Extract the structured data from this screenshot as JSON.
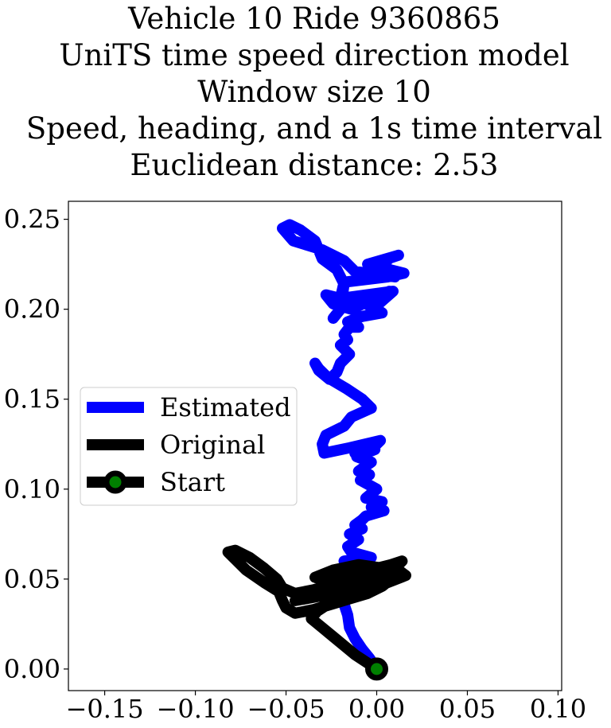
{
  "chart_data": {
    "type": "line",
    "title_lines": [
      "Vehicle 10 Ride 9360865",
      "UniTS time speed direction model",
      "Window size 10",
      "Speed, heading, and a 1s time interval",
      "Euclidean distance: 2.53"
    ],
    "xlabel": "",
    "ylabel": "",
    "xlim": [
      -0.17,
      0.102
    ],
    "ylim": [
      -0.012,
      0.26
    ],
    "x_ticks": [
      -0.15,
      -0.1,
      -0.05,
      0.0,
      0.05,
      0.1
    ],
    "x_tick_labels": [
      "−0.15",
      "−0.10",
      "−0.05",
      "0.00",
      "0.05",
      "0.10"
    ],
    "y_ticks": [
      0.0,
      0.05,
      0.1,
      0.15,
      0.2,
      0.25
    ],
    "y_tick_labels": [
      "0.00",
      "0.05",
      "0.10",
      "0.15",
      "0.20",
      "0.25"
    ],
    "grid": false,
    "legend_position": "center-left",
    "series": [
      {
        "name": "Estimated",
        "color": "#0000ff",
        "x": [
          0.0,
          -0.004,
          -0.008,
          -0.012,
          -0.015,
          -0.016,
          -0.018,
          -0.017,
          -0.02,
          -0.016,
          -0.022,
          -0.01,
          -0.018,
          -0.003,
          -0.014,
          -0.016,
          -0.01,
          -0.015,
          -0.008,
          -0.012,
          -0.008,
          -0.006,
          0.004,
          -0.003,
          0.003,
          -0.006,
          0.0,
          -0.009,
          -0.004,
          -0.01,
          -0.003,
          -0.011,
          -0.001,
          -0.006,
          -0.012,
          0.0,
          0.002,
          -0.015,
          -0.029,
          -0.03,
          -0.028,
          -0.018,
          -0.014,
          -0.003,
          -0.008,
          -0.017,
          -0.027,
          -0.032,
          -0.034,
          -0.032,
          -0.026,
          -0.022,
          -0.02,
          -0.015,
          -0.02,
          -0.016,
          -0.018,
          -0.015,
          -0.01,
          -0.016,
          -0.008,
          0.003,
          0.0,
          -0.006,
          0.007,
          -0.014,
          -0.024,
          -0.028,
          -0.016,
          0.0,
          0.009,
          -0.02,
          -0.018,
          0.006,
          0.015,
          -0.005,
          0.012,
          0.006,
          0.004,
          0.01,
          -0.012,
          -0.018,
          -0.03,
          -0.046,
          -0.052,
          -0.048,
          -0.042,
          -0.034,
          -0.03,
          -0.022,
          -0.018,
          -0.02,
          -0.024
        ],
        "y": [
          0.0,
          0.006,
          0.011,
          0.017,
          0.023,
          0.03,
          0.036,
          0.04,
          0.045,
          0.05,
          0.055,
          0.058,
          0.06,
          0.062,
          0.065,
          0.068,
          0.072,
          0.075,
          0.078,
          0.08,
          0.083,
          0.085,
          0.088,
          0.09,
          0.093,
          0.095,
          0.1,
          0.105,
          0.108,
          0.11,
          0.115,
          0.118,
          0.122,
          0.125,
          0.12,
          0.125,
          0.127,
          0.123,
          0.12,
          0.125,
          0.13,
          0.135,
          0.14,
          0.145,
          0.15,
          0.156,
          0.162,
          0.167,
          0.17,
          0.166,
          0.161,
          0.165,
          0.17,
          0.175,
          0.18,
          0.183,
          0.186,
          0.19,
          0.19,
          0.193,
          0.196,
          0.198,
          0.2,
          0.203,
          0.21,
          0.2,
          0.203,
          0.208,
          0.205,
          0.202,
          0.21,
          0.206,
          0.215,
          0.218,
          0.22,
          0.225,
          0.23,
          0.228,
          0.222,
          0.218,
          0.221,
          0.227,
          0.233,
          0.238,
          0.245,
          0.247,
          0.244,
          0.238,
          0.228,
          0.222,
          0.214,
          0.2,
          0.195
        ]
      },
      {
        "name": "Original",
        "color": "#000000",
        "x": [
          0.0,
          -0.006,
          -0.012,
          -0.018,
          -0.024,
          -0.03,
          -0.036,
          -0.033,
          -0.027,
          -0.02,
          -0.01,
          0.0,
          0.008,
          0.003,
          -0.005,
          -0.015,
          -0.025,
          -0.035,
          -0.045,
          -0.05,
          -0.052,
          -0.054,
          -0.062,
          -0.072,
          -0.082,
          -0.078,
          -0.07,
          -0.062,
          -0.055,
          -0.052,
          -0.045,
          -0.035,
          -0.025,
          -0.015,
          -0.005,
          0.005,
          0.012,
          0.016,
          0.006,
          -0.01,
          -0.025,
          -0.038,
          -0.045,
          -0.034,
          -0.02,
          -0.006,
          0.006,
          0.014,
          0.004,
          -0.01,
          -0.024,
          -0.034,
          -0.026,
          -0.016,
          -0.004,
          0.008,
          0.014,
          0.01,
          0.002,
          -0.008,
          -0.018,
          -0.026,
          -0.03,
          -0.022,
          -0.012,
          -0.002,
          0.004
        ],
        "y": [
          0.0,
          0.004,
          0.008,
          0.013,
          0.018,
          0.023,
          0.028,
          0.032,
          0.036,
          0.04,
          0.044,
          0.047,
          0.05,
          0.046,
          0.042,
          0.039,
          0.036,
          0.033,
          0.031,
          0.034,
          0.038,
          0.043,
          0.048,
          0.055,
          0.065,
          0.066,
          0.062,
          0.056,
          0.05,
          0.045,
          0.042,
          0.044,
          0.047,
          0.05,
          0.052,
          0.054,
          0.055,
          0.052,
          0.048,
          0.046,
          0.044,
          0.041,
          0.038,
          0.04,
          0.043,
          0.046,
          0.049,
          0.052,
          0.056,
          0.058,
          0.055,
          0.051,
          0.048,
          0.052,
          0.055,
          0.058,
          0.06,
          0.056,
          0.053,
          0.05,
          0.047,
          0.044,
          0.04,
          0.044,
          0.048,
          0.051,
          0.053
        ]
      }
    ],
    "start_marker": {
      "name": "Start",
      "x": 0.0,
      "y": 0.0,
      "face_color": "#008000",
      "edge_color": "#000000"
    }
  }
}
